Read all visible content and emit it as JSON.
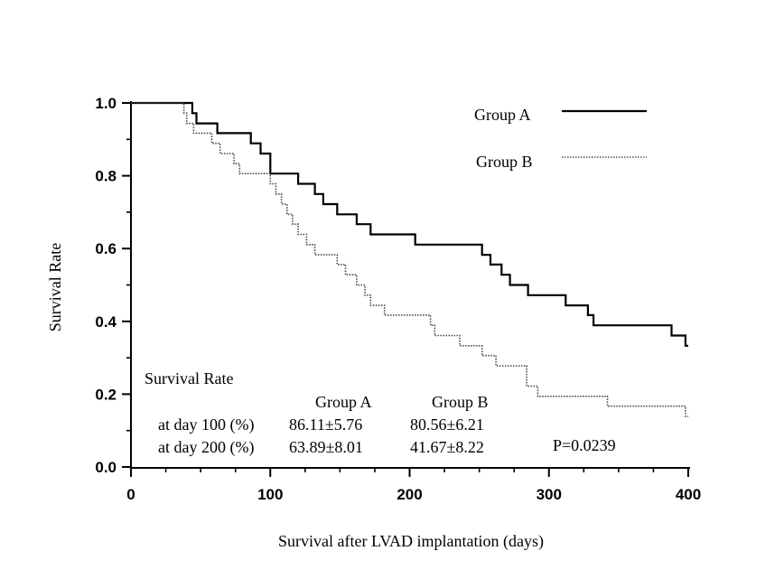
{
  "chart_data": {
    "type": "line",
    "xlabel": "Survival after LVAD implantation (days)",
    "ylabel": "Survival Rate",
    "xlim": [
      0,
      400
    ],
    "ylim": [
      0,
      1.0
    ],
    "x_ticks": [
      "0",
      "100",
      "200",
      "300",
      "400"
    ],
    "y_ticks": [
      "0.0",
      "0.2",
      "0.4",
      "0.6",
      "0.8",
      "1.0"
    ],
    "grid": false,
    "legend_position": "top-right",
    "series": [
      {
        "name": "Group A",
        "style": "solid",
        "color": "#000000",
        "x": [
          0,
          44,
          47,
          62,
          86,
          93,
          100,
          120,
          132,
          138,
          148,
          162,
          172,
          204,
          252,
          258,
          266,
          272,
          285,
          312,
          328,
          332,
          388,
          398,
          400
        ],
        "y": [
          1.0,
          0.972,
          0.944,
          0.917,
          0.889,
          0.861,
          0.806,
          0.778,
          0.75,
          0.722,
          0.694,
          0.667,
          0.639,
          0.611,
          0.583,
          0.556,
          0.528,
          0.5,
          0.472,
          0.444,
          0.417,
          0.389,
          0.361,
          0.333,
          0.333
        ]
      },
      {
        "name": "Group B",
        "style": "dotted",
        "color": "#444444",
        "x": [
          0,
          38,
          40,
          45,
          58,
          64,
          70,
          74,
          78,
          84,
          100,
          104,
          108,
          112,
          116,
          120,
          124,
          126,
          132,
          138,
          148,
          154,
          158,
          162,
          168,
          172,
          178,
          182,
          188,
          193,
          197,
          202,
          215,
          218,
          222,
          236,
          244,
          252,
          262,
          284,
          292,
          342,
          398,
          400
        ],
        "y": [
          1.0,
          0.972,
          0.944,
          0.917,
          0.889,
          0.861,
          0.861,
          0.833,
          0.806,
          0.806,
          0.778,
          0.75,
          0.722,
          0.694,
          0.667,
          0.639,
          0.639,
          0.611,
          0.583,
          0.583,
          0.556,
          0.528,
          0.528,
          0.5,
          0.472,
          0.444,
          0.444,
          0.417,
          0.417,
          0.417,
          0.417,
          0.417,
          0.389,
          0.361,
          0.361,
          0.333,
          0.333,
          0.306,
          0.278,
          0.222,
          0.194,
          0.167,
          0.139,
          0.139
        ]
      }
    ],
    "annotations": {
      "table_title": "Survival Rate",
      "table_headers": [
        "Group A",
        "Group B"
      ],
      "table_rows": [
        {
          "label": "at day 100 (%)",
          "a": "86.11±5.76",
          "b": "80.56±6.21"
        },
        {
          "label": "at day 200 (%)",
          "a": "63.89±8.01",
          "b": "41.67±8.22"
        }
      ],
      "p_value": "P=0.0239"
    }
  }
}
